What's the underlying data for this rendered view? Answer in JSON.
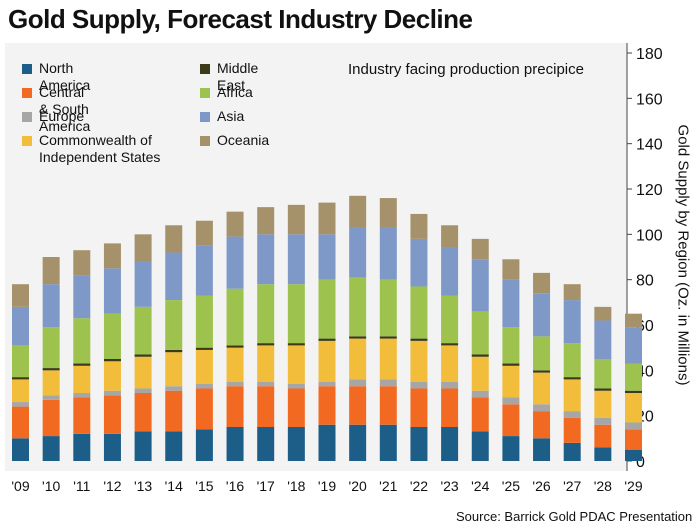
{
  "chart_data": {
    "type": "bar",
    "stacked": true,
    "title": "Gold Supply, Forecast Industry Decline",
    "subtitle": "Industry facing production precipice",
    "ylabel": "Gold Supply by Region (Oz. in Millions)",
    "source": "Source: Barrick Gold PDAC Presentation",
    "ylim": [
      0,
      180
    ],
    "yticks": [
      0,
      20,
      40,
      60,
      80,
      100,
      120,
      140,
      160,
      180
    ],
    "y_axis_side": "right",
    "categories": [
      "'09",
      "'10",
      "'11",
      "'12",
      "'13",
      "'14",
      "'15",
      "'16",
      "'17",
      "'18",
      "'19",
      "'20",
      "'21",
      "'22",
      "'23",
      "'24",
      "'25",
      "'26",
      "'27",
      "'28",
      "'29"
    ],
    "series": [
      {
        "name": "North America",
        "color": "#1d5e88",
        "values": [
          10,
          11,
          12,
          12,
          13,
          13,
          14,
          15,
          15,
          15,
          16,
          16,
          16,
          15,
          15,
          13,
          11,
          10,
          8,
          6,
          5
        ]
      },
      {
        "name": "Central & South America",
        "color": "#f26a21",
        "values": [
          14,
          16,
          16,
          17,
          17,
          18,
          18,
          18,
          18,
          17,
          17,
          17,
          17,
          17,
          17,
          15,
          14,
          12,
          11,
          10,
          9
        ]
      },
      {
        "name": "Europe",
        "color": "#a6a6a6",
        "values": [
          2,
          2,
          2,
          2,
          2,
          2,
          2,
          2,
          2,
          2,
          2,
          3,
          3,
          3,
          3,
          3,
          3,
          3,
          3,
          3,
          3
        ]
      },
      {
        "name": "Commonwealth of Independent States",
        "color": "#f1bd3a",
        "values": [
          10,
          11,
          12,
          13,
          14,
          15,
          15,
          15,
          16,
          17,
          18,
          18,
          18,
          18,
          16,
          15,
          14,
          14,
          14,
          12,
          13
        ]
      },
      {
        "name": "Middle East",
        "color": "#3b3b1a",
        "values": [
          1,
          1,
          1,
          1,
          1,
          1,
          1,
          1,
          1,
          1,
          1,
          1,
          1,
          1,
          1,
          1,
          1,
          1,
          1,
          1,
          1
        ]
      },
      {
        "name": "Africa",
        "color": "#9dc24e",
        "values": [
          14,
          18,
          20,
          20,
          21,
          22,
          23,
          25,
          26,
          26,
          26,
          26,
          25,
          23,
          21,
          19,
          16,
          15,
          15,
          13,
          12
        ]
      },
      {
        "name": "Asia",
        "color": "#7e99c7",
        "values": [
          17,
          19,
          19,
          20,
          20,
          21,
          22,
          23,
          22,
          22,
          20,
          22,
          23,
          21,
          21,
          23,
          21,
          19,
          19,
          17,
          16
        ]
      },
      {
        "name": "Oceania",
        "color": "#a6926a",
        "values": [
          10,
          12,
          11,
          11,
          12,
          12,
          11,
          11,
          12,
          13,
          14,
          14,
          13,
          11,
          10,
          9,
          9,
          9,
          7,
          6,
          6
        ]
      }
    ]
  }
}
